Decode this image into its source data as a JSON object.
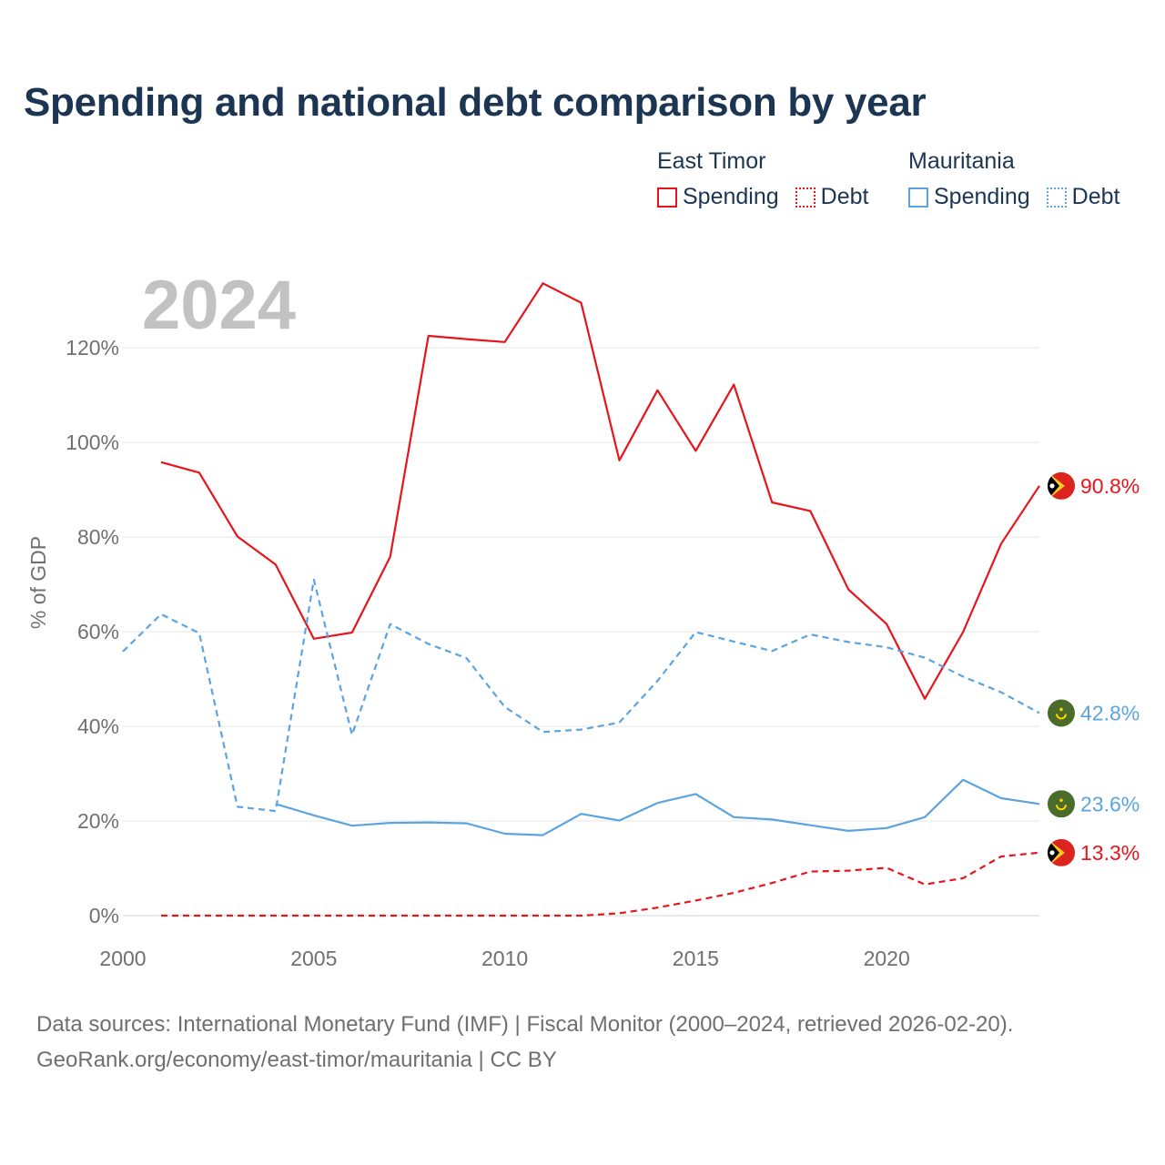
{
  "title": "Spending and national debt comparison by year",
  "year_watermark": "2024",
  "legend": {
    "groups": [
      {
        "name": "East Timor",
        "items": [
          {
            "label": "Spending",
            "style": "solid",
            "color": "#e8141c"
          },
          {
            "label": "Debt",
            "style": "dotted",
            "color": "#e8141c"
          }
        ]
      },
      {
        "name": "Mauritania",
        "items": [
          {
            "label": "Spending",
            "style": "solid",
            "color": "#5ba4e0"
          },
          {
            "label": "Debt",
            "style": "dotted",
            "color": "#5ba4e0"
          }
        ]
      }
    ]
  },
  "footer": {
    "line1": "Data sources: International Monetary Fund (IMF) | Fiscal Monitor (2000–2024, retrieved 2026-02-20).",
    "line2": "GeoRank.org/economy/east-timor/mauritania | CC BY"
  },
  "chart_data": {
    "type": "line",
    "title": "Spending and national debt comparison by year",
    "xlabel": "",
    "ylabel": "% of GDP",
    "xlim": [
      2000,
      2024
    ],
    "ylim": [
      0,
      130
    ],
    "x_ticks": [
      2000,
      2005,
      2010,
      2015,
      2020
    ],
    "x_tick_labels": [
      "2000",
      "2005",
      "2010",
      "2015",
      "2020"
    ],
    "y_ticks": [
      0,
      20,
      40,
      60,
      80,
      100,
      120
    ],
    "y_tick_labels": [
      "0%",
      "20%",
      "40%",
      "60%",
      "80%",
      "100%",
      "120%"
    ],
    "grid": true,
    "series": [
      {
        "name": "East Timor Spending",
        "country": "East Timor",
        "metric": "Spending",
        "color": "#e8141c",
        "dash": "solid",
        "end_label": "90.8%",
        "flag": "east-timor-flag-icon",
        "x": [
          2001,
          2002,
          2003,
          2004,
          2005,
          2006,
          2007,
          2008,
          2009,
          2010,
          2011,
          2012,
          2013,
          2014,
          2015,
          2016,
          2017,
          2018,
          2019,
          2020,
          2021,
          2022,
          2023,
          2024
        ],
        "y": [
          95.8,
          93.6,
          80.1,
          74.2,
          58.5,
          59.8,
          75.8,
          122.5,
          121.8,
          121.2,
          133.6,
          129.5,
          96.2,
          111.0,
          98.2,
          112.2,
          87.3,
          85.5,
          68.9,
          61.6,
          45.8,
          59.9,
          78.6,
          90.8
        ]
      },
      {
        "name": "East Timor Debt",
        "country": "East Timor",
        "metric": "Debt",
        "color": "#e8141c",
        "dash": "dashed",
        "end_label": "13.3%",
        "flag": "east-timor-flag-icon",
        "x": [
          2001,
          2002,
          2003,
          2004,
          2005,
          2006,
          2007,
          2008,
          2009,
          2010,
          2011,
          2012,
          2013,
          2014,
          2015,
          2016,
          2017,
          2018,
          2019,
          2020,
          2021,
          2022,
          2023,
          2024
        ],
        "y": [
          0,
          0,
          0,
          0,
          0,
          0,
          0,
          0,
          0,
          0,
          0,
          0,
          0.5,
          1.7,
          3.2,
          4.8,
          6.9,
          9.3,
          9.5,
          10.1,
          6.6,
          7.9,
          12.5,
          13.3
        ]
      },
      {
        "name": "Mauritania Spending",
        "country": "Mauritania",
        "metric": "Spending",
        "color": "#5ba4e0",
        "dash": "solid",
        "end_label": "23.6%",
        "flag": "mauritania-flag-icon",
        "x": [
          2004,
          2005,
          2006,
          2007,
          2008,
          2009,
          2010,
          2011,
          2012,
          2013,
          2014,
          2015,
          2016,
          2017,
          2018,
          2019,
          2020,
          2021,
          2022,
          2023,
          2024
        ],
        "y": [
          23.6,
          21.2,
          19.0,
          19.6,
          19.7,
          19.5,
          17.3,
          17.0,
          21.5,
          20.1,
          23.8,
          25.7,
          20.8,
          20.3,
          19.1,
          17.9,
          18.5,
          20.8,
          28.7,
          24.8,
          23.6
        ]
      },
      {
        "name": "Mauritania Debt",
        "country": "Mauritania",
        "metric": "Debt",
        "color": "#5ba4e0",
        "dash": "dashed",
        "end_label": "42.8%",
        "flag": "mauritania-flag-icon",
        "x": [
          2000,
          2001,
          2002,
          2003,
          2004,
          2005,
          2006,
          2007,
          2008,
          2009,
          2010,
          2011,
          2012,
          2013,
          2014,
          2015,
          2016,
          2017,
          2018,
          2019,
          2020,
          2021,
          2022,
          2023,
          2024
        ],
        "y": [
          55.8,
          63.7,
          59.7,
          23.0,
          22.1,
          71.0,
          38.2,
          61.6,
          57.4,
          54.4,
          44.1,
          38.8,
          39.3,
          40.8,
          49.6,
          59.9,
          57.9,
          55.9,
          59.4,
          57.8,
          56.7,
          54.5,
          50.5,
          47.2,
          42.8
        ]
      }
    ]
  }
}
